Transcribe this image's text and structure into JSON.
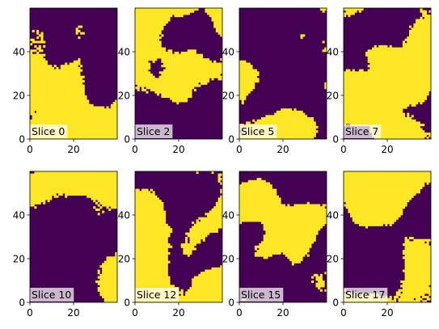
{
  "colors": {
    "low": "#440154",
    "high": "#fde725",
    "label_box": "#ffffff",
    "axis": "#000000"
  },
  "chart_data": [
    {
      "type": "heatmap",
      "label": "Slice 0",
      "colormap": "viridis",
      "binary": true,
      "shape": [
        60,
        40
      ],
      "xlim": [
        0,
        40
      ],
      "ylim": [
        0,
        60
      ],
      "xticks": [
        0,
        20
      ],
      "yticks": [
        0,
        20,
        40
      ],
      "seed": 11
    },
    {
      "type": "heatmap",
      "label": "Slice 2",
      "colormap": "viridis",
      "binary": true,
      "shape": [
        60,
        40
      ],
      "xlim": [
        0,
        40
      ],
      "ylim": [
        0,
        60
      ],
      "xticks": [
        0,
        20
      ],
      "yticks": [
        0,
        20,
        40
      ],
      "seed": 23
    },
    {
      "type": "heatmap",
      "label": "Slice 5",
      "colormap": "viridis",
      "binary": true,
      "shape": [
        60,
        40
      ],
      "xlim": [
        0,
        40
      ],
      "ylim": [
        0,
        60
      ],
      "xticks": [
        0,
        20
      ],
      "yticks": [
        0,
        20,
        40
      ],
      "seed": 37
    },
    {
      "type": "heatmap",
      "label": "Slice 7",
      "colormap": "viridis",
      "binary": true,
      "shape": [
        60,
        40
      ],
      "xlim": [
        0,
        40
      ],
      "ylim": [
        0,
        60
      ],
      "xticks": [
        0,
        20
      ],
      "yticks": [
        0,
        20,
        40
      ],
      "seed": 41
    },
    {
      "type": "heatmap",
      "label": "Slice 10",
      "colormap": "viridis",
      "binary": true,
      "shape": [
        60,
        40
      ],
      "xlim": [
        0,
        40
      ],
      "ylim": [
        0,
        60
      ],
      "xticks": [
        0,
        20
      ],
      "yticks": [
        0,
        20,
        40
      ],
      "seed": 53
    },
    {
      "type": "heatmap",
      "label": "Slice 12",
      "colormap": "viridis",
      "binary": true,
      "shape": [
        60,
        40
      ],
      "xlim": [
        0,
        40
      ],
      "ylim": [
        0,
        60
      ],
      "xticks": [
        0,
        20
      ],
      "yticks": [
        0,
        20,
        40
      ],
      "seed": 67
    },
    {
      "type": "heatmap",
      "label": "Slice 15",
      "colormap": "viridis",
      "binary": true,
      "shape": [
        60,
        40
      ],
      "xlim": [
        0,
        40
      ],
      "ylim": [
        0,
        60
      ],
      "xticks": [
        0,
        20
      ],
      "yticks": [
        0,
        20,
        40
      ],
      "seed": 79
    },
    {
      "type": "heatmap",
      "label": "Slice 17",
      "colormap": "viridis",
      "binary": true,
      "shape": [
        60,
        40
      ],
      "xlim": [
        0,
        40
      ],
      "ylim": [
        0,
        60
      ],
      "xticks": [
        0,
        20
      ],
      "yticks": [
        0,
        20,
        40
      ],
      "seed": 97
    }
  ]
}
